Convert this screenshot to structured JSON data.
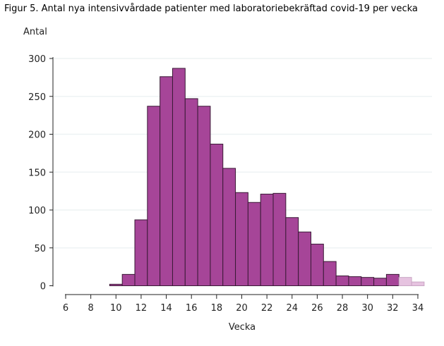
{
  "title": "Figur 5. Antal nya intensivvårdade patienter med laboratoriebekräftad covid-19 per vecka",
  "chart_data": {
    "type": "bar",
    "title": "Figur 5. Antal nya intensivvårdade patienter med laboratoriebekräftad covid-19 per vecka",
    "xlabel": "Vecka",
    "ylabel": "Antal",
    "xlim": [
      5.5,
      34.5
    ],
    "ylim": [
      0,
      300
    ],
    "xticks": [
      6,
      8,
      10,
      12,
      14,
      16,
      18,
      20,
      22,
      24,
      26,
      28,
      30,
      32,
      34
    ],
    "yticks": [
      0,
      50,
      100,
      150,
      200,
      250,
      300
    ],
    "grid": true,
    "categories": [
      10,
      11,
      12,
      13,
      14,
      15,
      16,
      17,
      18,
      19,
      20,
      21,
      22,
      23,
      24,
      25,
      26,
      27,
      28,
      29,
      30,
      31,
      32,
      33,
      34
    ],
    "values": [
      2,
      15,
      87,
      237,
      276,
      287,
      247,
      237,
      187,
      155,
      123,
      110,
      121,
      122,
      90,
      71,
      55,
      32,
      13,
      12,
      11,
      10,
      15,
      11,
      5
    ],
    "preliminary_weeks": [
      33,
      34
    ],
    "colors": {
      "bar": "#a64598",
      "bar_edge": "#3a1a36",
      "preliminary_bar": "#e6c3e0",
      "preliminary_edge": "#c9a6c4",
      "grid": "#eef3f4"
    }
  }
}
